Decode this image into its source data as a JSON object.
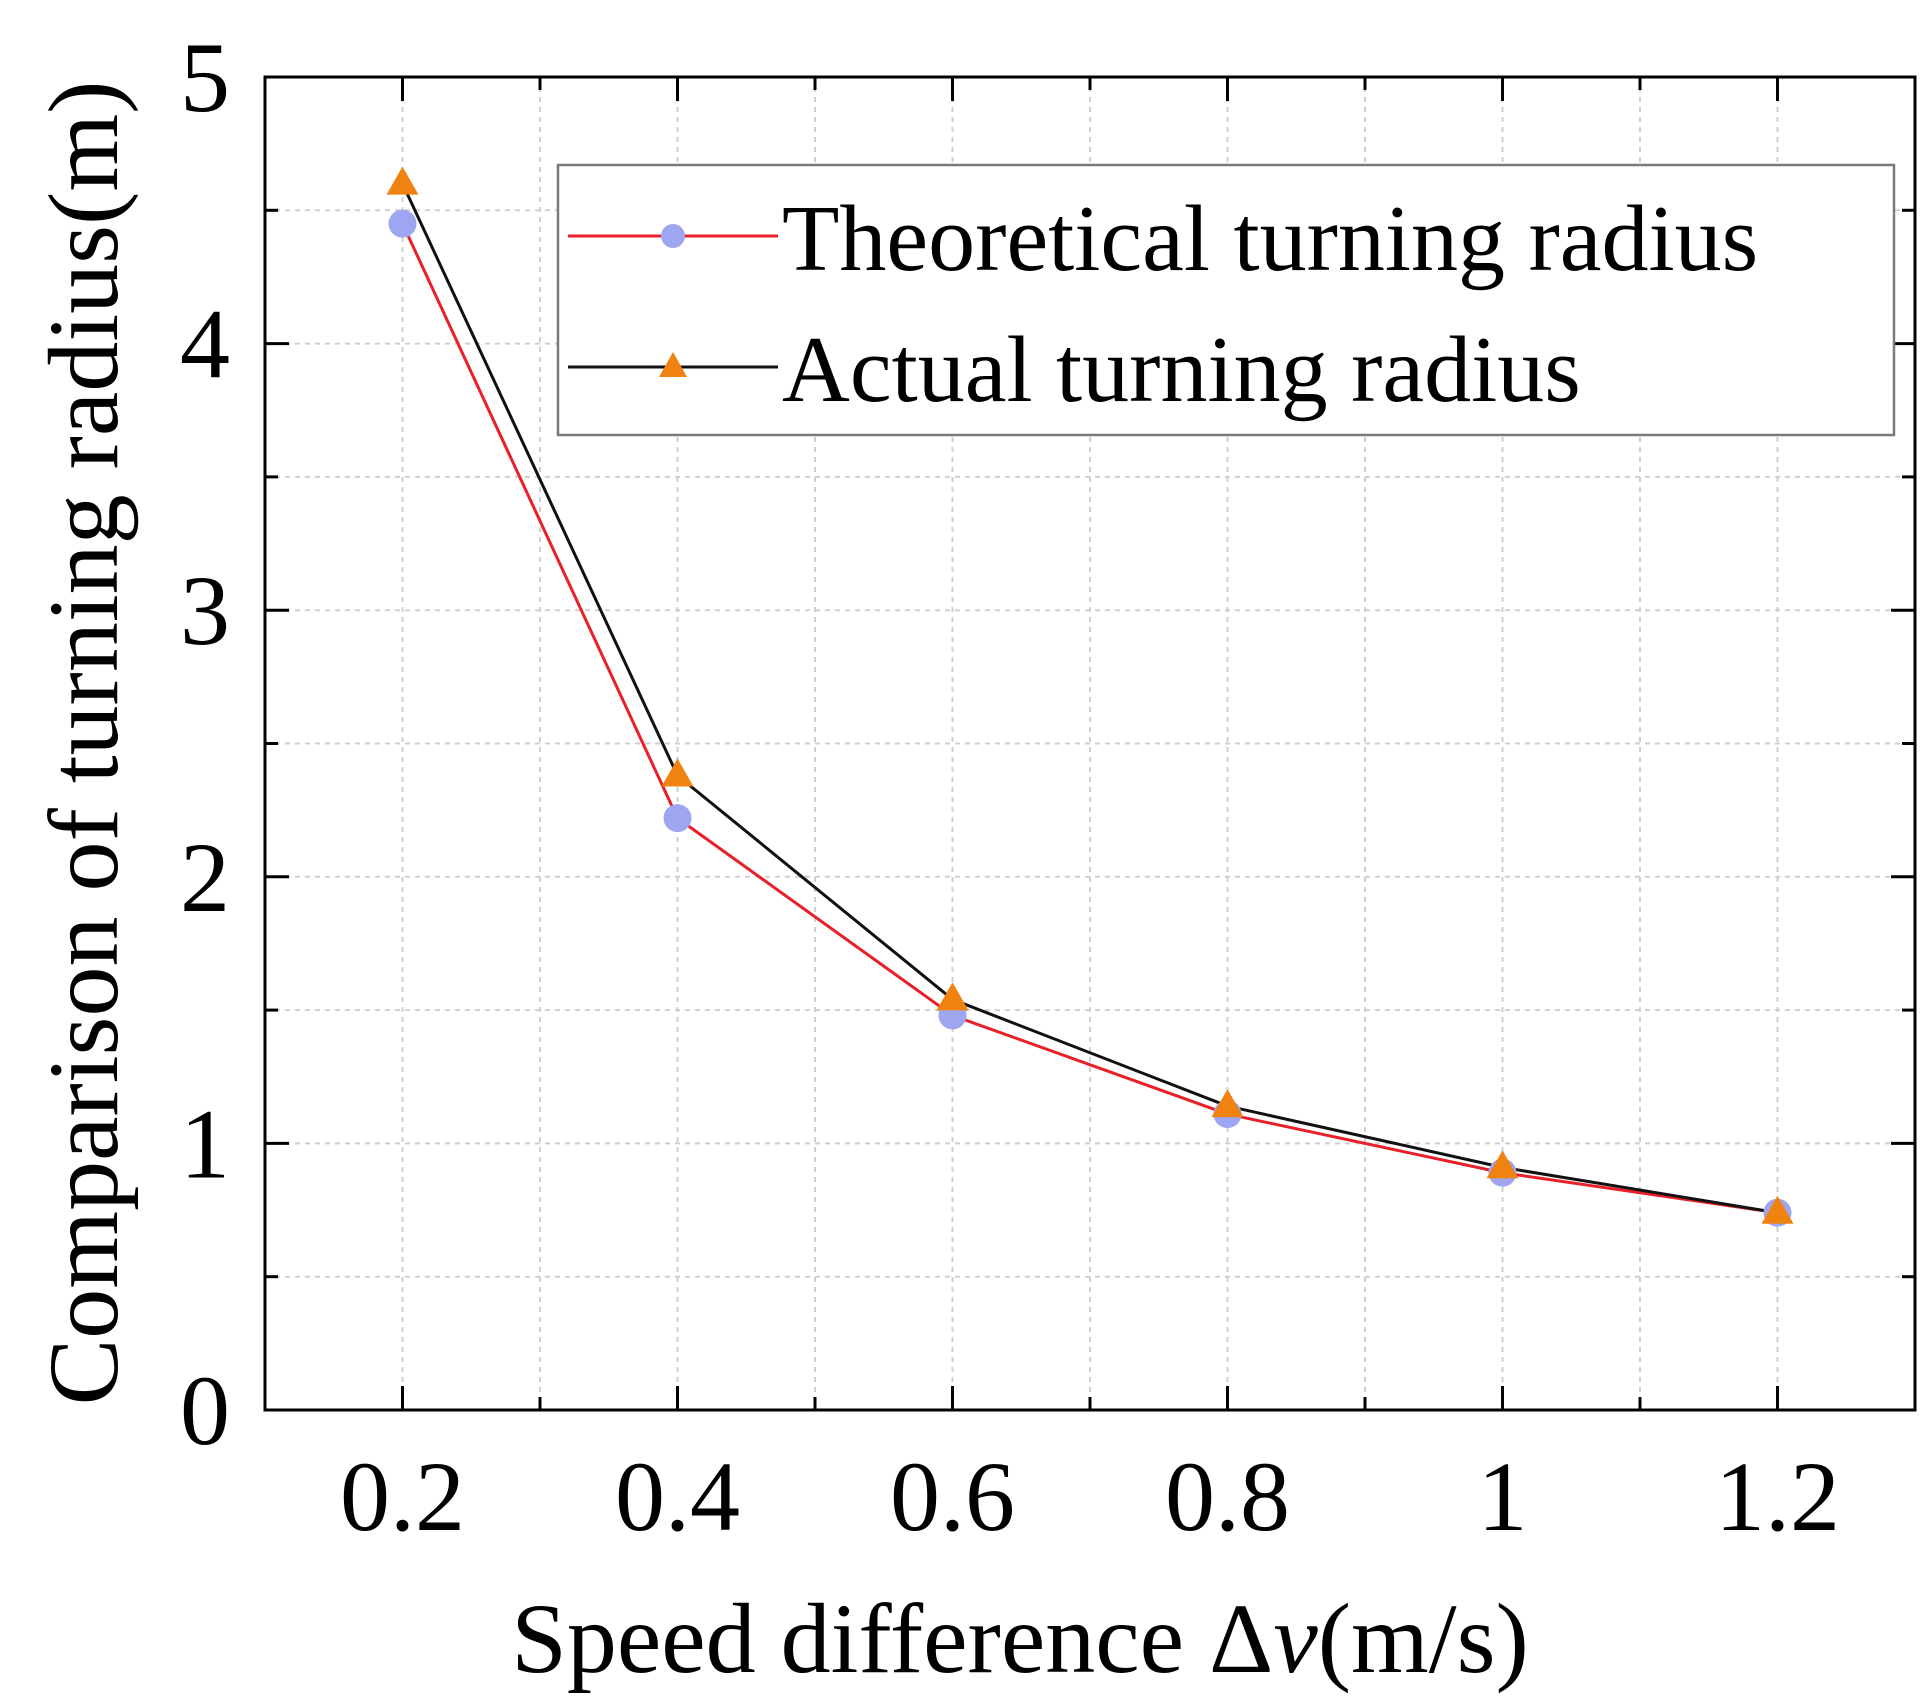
{
  "chart_data": {
    "type": "line",
    "title": "",
    "xlabel": {
      "prefix": "Speed difference Δ",
      "variable": "v",
      "suffix": "(m/s)"
    },
    "ylabel": "Comparison of turning radius(m)",
    "xlim": [
      0.1,
      1.3
    ],
    "ylim": [
      0,
      5
    ],
    "x_ticks": [
      0.2,
      0.4,
      0.6,
      0.8,
      1.0,
      1.2
    ],
    "x_tick_labels": [
      "0.2",
      "0.4",
      "0.6",
      "0.8",
      "1",
      "1.2"
    ],
    "x_minor_ticks": [
      0.3,
      0.5,
      0.7,
      0.9,
      1.1
    ],
    "y_ticks": [
      0,
      1,
      2,
      3,
      4,
      5
    ],
    "y_tick_labels": [
      "0",
      "1",
      "2",
      "3",
      "4",
      "5"
    ],
    "y_minor_ticks": [
      0.5,
      1.5,
      2.5,
      3.5,
      4.5
    ],
    "grid": true,
    "legend_position": "top-right",
    "x": [
      0.2,
      0.4,
      0.6,
      0.8,
      1.0,
      1.2
    ],
    "series": [
      {
        "name": "Theoretical turning radius",
        "values": [
          4.45,
          2.22,
          1.48,
          1.11,
          0.89,
          0.74
        ],
        "line_color": "#e8202a",
        "marker": "circle",
        "marker_color": "#9ea6f2"
      },
      {
        "name": "Actual turning radius",
        "values": [
          4.6,
          2.38,
          1.54,
          1.14,
          0.91,
          0.74
        ],
        "line_color": "#111111",
        "marker": "triangle",
        "marker_color": "#f0820f"
      }
    ]
  }
}
